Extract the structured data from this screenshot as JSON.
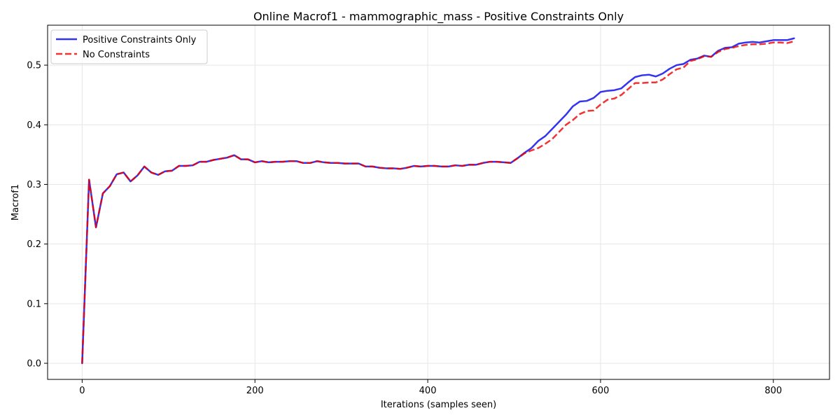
{
  "chart_data": {
    "type": "line",
    "title": "Online Macrof1 - mammographic_mass - Positive Constraints Only",
    "xlabel": "Iterations (samples seen)",
    "ylabel": "Macrof1",
    "xlim": [
      -40,
      865
    ],
    "ylim": [
      -0.027,
      0.567
    ],
    "xticks": [
      0,
      200,
      400,
      600,
      800
    ],
    "yticks": [
      0.0,
      0.1,
      0.2,
      0.3,
      0.4,
      0.5
    ],
    "xtick_labels": [
      "0",
      "200",
      "400",
      "600",
      "800"
    ],
    "ytick_labels": [
      "0.0",
      "0.1",
      "0.2",
      "0.3",
      "0.4",
      "0.5"
    ],
    "grid": true,
    "legend_position": "top-left",
    "series": [
      {
        "name": "Positive Constraints Only",
        "color": "#0000ee",
        "style": "solid",
        "x": [
          0,
          8,
          16,
          24,
          32,
          40,
          48,
          56,
          64,
          72,
          80,
          88,
          96,
          104,
          112,
          120,
          128,
          136,
          144,
          152,
          160,
          168,
          176,
          184,
          192,
          200,
          208,
          216,
          224,
          232,
          240,
          248,
          256,
          264,
          272,
          280,
          288,
          296,
          304,
          312,
          320,
          328,
          336,
          344,
          352,
          360,
          368,
          376,
          384,
          392,
          400,
          408,
          416,
          424,
          432,
          440,
          448,
          456,
          464,
          472,
          480,
          488,
          496,
          504,
          512,
          520,
          528,
          536,
          544,
          552,
          560,
          568,
          576,
          584,
          592,
          600,
          608,
          616,
          624,
          632,
          640,
          648,
          656,
          664,
          672,
          680,
          688,
          696,
          704,
          712,
          720,
          728,
          736,
          744,
          752,
          760,
          768,
          776,
          784,
          792,
          800,
          808,
          816,
          824
        ],
        "values": [
          0.0,
          0.308,
          0.228,
          0.285,
          0.297,
          0.317,
          0.32,
          0.305,
          0.315,
          0.33,
          0.32,
          0.316,
          0.322,
          0.323,
          0.331,
          0.331,
          0.332,
          0.338,
          0.338,
          0.341,
          0.343,
          0.345,
          0.349,
          0.342,
          0.342,
          0.337,
          0.339,
          0.337,
          0.338,
          0.338,
          0.339,
          0.339,
          0.336,
          0.336,
          0.339,
          0.337,
          0.336,
          0.336,
          0.335,
          0.335,
          0.335,
          0.33,
          0.33,
          0.328,
          0.327,
          0.327,
          0.326,
          0.328,
          0.331,
          0.33,
          0.331,
          0.331,
          0.33,
          0.33,
          0.332,
          0.331,
          0.333,
          0.333,
          0.336,
          0.338,
          0.338,
          0.337,
          0.336,
          0.344,
          0.353,
          0.361,
          0.373,
          0.381,
          0.393,
          0.405,
          0.417,
          0.431,
          0.439,
          0.44,
          0.445,
          0.455,
          0.457,
          0.458,
          0.461,
          0.471,
          0.48,
          0.483,
          0.484,
          0.481,
          0.486,
          0.494,
          0.5,
          0.502,
          0.509,
          0.511,
          0.516,
          0.514,
          0.524,
          0.529,
          0.53,
          0.536,
          0.538,
          0.539,
          0.538,
          0.54,
          0.542,
          0.542,
          0.542,
          0.545
        ]
      },
      {
        "name": "No Constraints",
        "color": "#ee0000",
        "style": "dashed",
        "x": [
          0,
          8,
          16,
          24,
          32,
          40,
          48,
          56,
          64,
          72,
          80,
          88,
          96,
          104,
          112,
          120,
          128,
          136,
          144,
          152,
          160,
          168,
          176,
          184,
          192,
          200,
          208,
          216,
          224,
          232,
          240,
          248,
          256,
          264,
          272,
          280,
          288,
          296,
          304,
          312,
          320,
          328,
          336,
          344,
          352,
          360,
          368,
          376,
          384,
          392,
          400,
          408,
          416,
          424,
          432,
          440,
          448,
          456,
          464,
          472,
          480,
          488,
          496,
          504,
          512,
          520,
          528,
          536,
          544,
          552,
          560,
          568,
          576,
          584,
          592,
          600,
          608,
          616,
          624,
          632,
          640,
          648,
          656,
          664,
          672,
          680,
          688,
          696,
          704,
          712,
          720,
          728,
          736,
          744,
          752,
          760,
          768,
          776,
          784,
          792,
          800,
          808,
          816,
          824
        ],
        "values": [
          0.0,
          0.308,
          0.228,
          0.285,
          0.297,
          0.317,
          0.32,
          0.305,
          0.315,
          0.33,
          0.32,
          0.316,
          0.322,
          0.323,
          0.331,
          0.331,
          0.332,
          0.338,
          0.338,
          0.341,
          0.343,
          0.345,
          0.349,
          0.342,
          0.342,
          0.337,
          0.339,
          0.337,
          0.338,
          0.338,
          0.339,
          0.339,
          0.336,
          0.336,
          0.339,
          0.337,
          0.336,
          0.336,
          0.335,
          0.335,
          0.335,
          0.33,
          0.33,
          0.328,
          0.327,
          0.327,
          0.326,
          0.328,
          0.331,
          0.33,
          0.331,
          0.331,
          0.33,
          0.33,
          0.332,
          0.331,
          0.333,
          0.333,
          0.336,
          0.338,
          0.338,
          0.337,
          0.336,
          0.344,
          0.352,
          0.357,
          0.361,
          0.368,
          0.376,
          0.388,
          0.4,
          0.408,
          0.418,
          0.423,
          0.424,
          0.434,
          0.442,
          0.444,
          0.45,
          0.46,
          0.47,
          0.47,
          0.471,
          0.471,
          0.476,
          0.485,
          0.493,
          0.496,
          0.507,
          0.51,
          0.515,
          0.514,
          0.522,
          0.527,
          0.529,
          0.532,
          0.534,
          0.535,
          0.535,
          0.536,
          0.538,
          0.538,
          0.537,
          0.54
        ]
      }
    ]
  }
}
